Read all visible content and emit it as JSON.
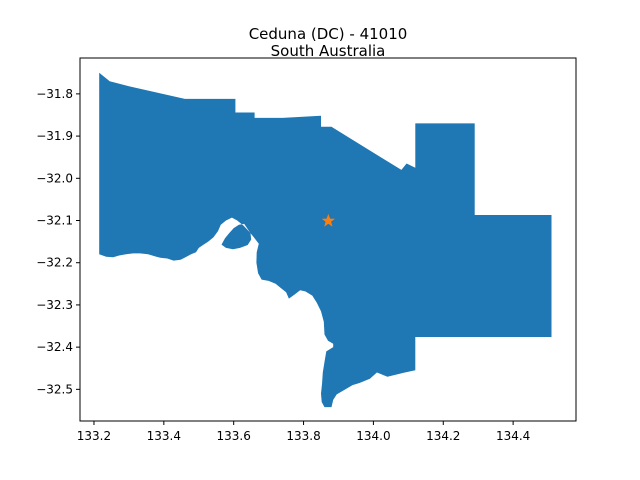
{
  "title": {
    "line1": "Ceduna (DC) - 41010",
    "line2": "South Australia"
  },
  "colors": {
    "region_fill": "#1f77b4",
    "marker": "#ff7f0e",
    "axes": "#000000",
    "background": "#ffffff"
  },
  "chart_data": {
    "type": "map",
    "xlim": [
      133.16,
      134.58
    ],
    "ylim": [
      -32.575,
      -31.715
    ],
    "grid": false,
    "x_ticks": [
      133.2,
      133.4,
      133.6,
      133.8,
      134.0,
      134.2,
      134.4
    ],
    "x_tick_labels": [
      "133.2",
      "133.4",
      "133.6",
      "133.8",
      "134.0",
      "134.2",
      "134.4"
    ],
    "y_ticks": [
      -31.8,
      -31.9,
      -32.0,
      -32.1,
      -32.2,
      -32.3,
      -32.4,
      -32.5
    ],
    "y_tick_labels": [
      "−31.8",
      "−31.9",
      "−32.0",
      "−32.1",
      "−32.2",
      "−32.3",
      "−32.4",
      "−32.5"
    ],
    "marker": {
      "type": "star",
      "x": 133.871,
      "y": -32.101
    },
    "region": {
      "outline": [
        [
          133.215,
          -31.75
        ],
        [
          133.245,
          -31.77
        ],
        [
          133.3,
          -31.782
        ],
        [
          133.46,
          -31.812
        ],
        [
          133.605,
          -31.812
        ],
        [
          133.605,
          -31.844
        ],
        [
          133.66,
          -31.844
        ],
        [
          133.66,
          -31.857
        ],
        [
          133.74,
          -31.857
        ],
        [
          133.85,
          -31.852
        ],
        [
          133.85,
          -31.878
        ],
        [
          133.88,
          -31.878
        ],
        [
          134.08,
          -31.98
        ],
        [
          134.095,
          -31.965
        ],
        [
          134.12,
          -31.975
        ],
        [
          134.12,
          -31.87
        ],
        [
          134.29,
          -31.87
        ],
        [
          134.29,
          -32.087
        ],
        [
          134.51,
          -32.087
        ],
        [
          134.51,
          -32.376
        ],
        [
          134.12,
          -32.376
        ],
        [
          134.12,
          -32.455
        ],
        [
          134.09,
          -32.46
        ],
        [
          134.04,
          -32.47
        ],
        [
          134.01,
          -32.46
        ],
        [
          133.99,
          -32.475
        ],
        [
          133.96,
          -32.485
        ],
        [
          133.94,
          -32.49
        ],
        [
          133.92,
          -32.5
        ],
        [
          133.895,
          -32.512
        ],
        [
          133.885,
          -32.525
        ],
        [
          133.88,
          -32.542
        ],
        [
          133.86,
          -32.542
        ],
        [
          133.852,
          -32.53
        ],
        [
          133.85,
          -32.51
        ],
        [
          133.853,
          -32.485
        ],
        [
          133.855,
          -32.46
        ],
        [
          133.86,
          -32.435
        ],
        [
          133.865,
          -32.41
        ],
        [
          133.885,
          -32.4
        ],
        [
          133.885,
          -32.392
        ],
        [
          133.87,
          -32.385
        ],
        [
          133.86,
          -32.37
        ],
        [
          133.858,
          -32.34
        ],
        [
          133.85,
          -32.315
        ],
        [
          133.838,
          -32.295
        ],
        [
          133.825,
          -32.278
        ],
        [
          133.805,
          -32.268
        ],
        [
          133.79,
          -32.265
        ],
        [
          133.775,
          -32.275
        ],
        [
          133.758,
          -32.285
        ],
        [
          133.75,
          -32.27
        ],
        [
          133.735,
          -32.26
        ],
        [
          133.72,
          -32.25
        ],
        [
          133.7,
          -32.243
        ],
        [
          133.68,
          -32.24
        ],
        [
          133.67,
          -32.225
        ],
        [
          133.665,
          -32.2
        ],
        [
          133.666,
          -32.175
        ],
        [
          133.672,
          -32.155
        ],
        [
          133.658,
          -32.14
        ],
        [
          133.645,
          -32.127
        ],
        [
          133.628,
          -32.112
        ],
        [
          133.61,
          -32.1
        ],
        [
          133.595,
          -32.093
        ],
        [
          133.578,
          -32.1
        ],
        [
          133.563,
          -32.11
        ],
        [
          133.555,
          -32.125
        ],
        [
          133.542,
          -32.14
        ],
        [
          133.527,
          -32.15
        ],
        [
          133.512,
          -32.158
        ],
        [
          133.5,
          -32.165
        ],
        [
          133.492,
          -32.175
        ],
        [
          133.478,
          -32.18
        ],
        [
          133.462,
          -32.187
        ],
        [
          133.448,
          -32.193
        ],
        [
          133.428,
          -32.195
        ],
        [
          133.41,
          -32.19
        ],
        [
          133.39,
          -32.188
        ],
        [
          133.375,
          -32.185
        ],
        [
          133.355,
          -32.18
        ],
        [
          133.332,
          -32.178
        ],
        [
          133.312,
          -32.178
        ],
        [
          133.292,
          -32.18
        ],
        [
          133.272,
          -32.183
        ],
        [
          133.255,
          -32.187
        ],
        [
          133.235,
          -32.186
        ],
        [
          133.215,
          -32.18
        ]
      ],
      "holes": [
        [
          [
            133.63,
            -32.108
          ],
          [
            133.615,
            -32.11
          ],
          [
            133.6,
            -32.118
          ],
          [
            133.587,
            -32.13
          ],
          [
            133.575,
            -32.142
          ],
          [
            133.565,
            -32.157
          ],
          [
            133.578,
            -32.165
          ],
          [
            133.598,
            -32.168
          ],
          [
            133.618,
            -32.165
          ],
          [
            133.64,
            -32.158
          ],
          [
            133.65,
            -32.145
          ],
          [
            133.648,
            -32.13
          ]
        ]
      ]
    }
  }
}
